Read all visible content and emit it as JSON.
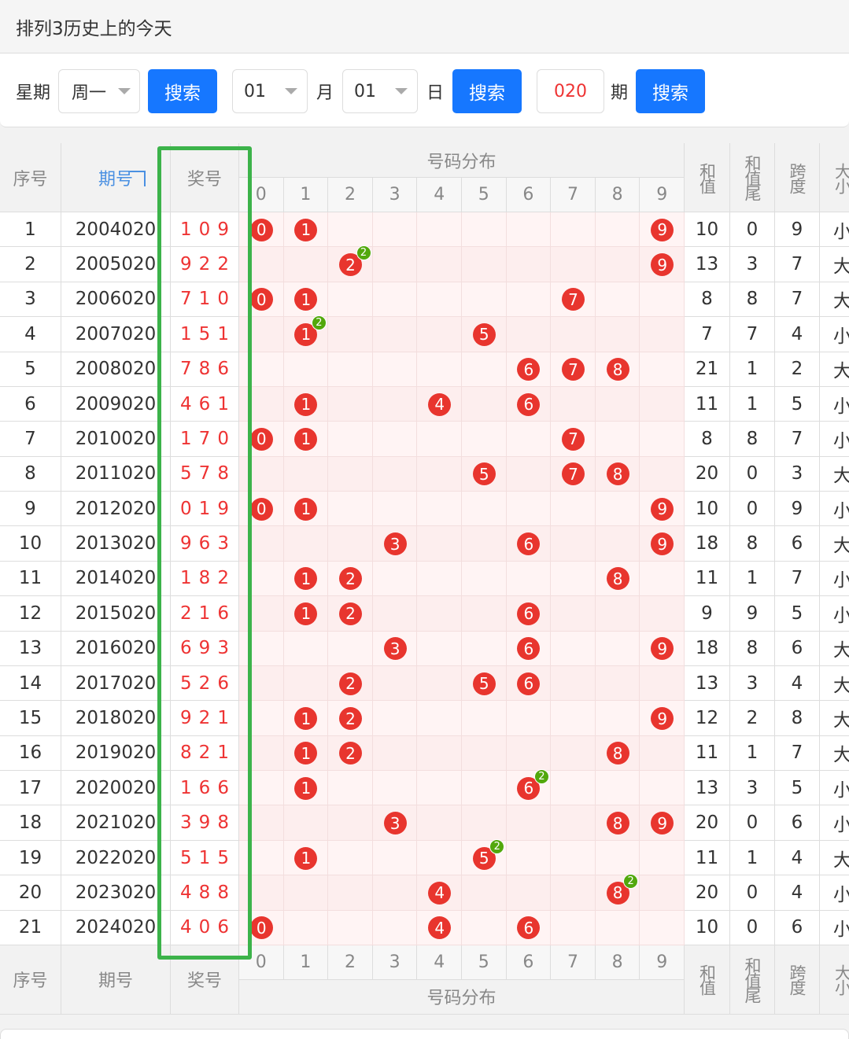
{
  "header": {
    "title": "排列3历史上的今天"
  },
  "controls": {
    "week_label": "星期",
    "week": "周一",
    "search1": "搜索",
    "month": "01",
    "month_label": "月",
    "day": "01",
    "day_label": "日",
    "search2": "搜索",
    "issue": "020",
    "issue_label": "期",
    "search3": "搜索"
  },
  "table": {
    "headers": {
      "no": "序号",
      "issue": "期号",
      "win": "奖号",
      "dist": "号码分布",
      "digits": [
        0,
        1,
        2,
        3,
        4,
        5,
        6,
        7,
        8,
        9
      ],
      "sum": "和值",
      "tail": "和值尾",
      "span": "跨度",
      "size": "大小"
    },
    "rows": [
      {
        "no": 1,
        "issue": "2004020",
        "win": "109",
        "balls": [
          0,
          1,
          9
        ],
        "sum": 10,
        "tail": 0,
        "span": 9,
        "size": "小"
      },
      {
        "no": 2,
        "issue": "2005020",
        "win": "922",
        "balls": [
          2,
          9
        ],
        "rep": {
          "digit": 2,
          "badge": 2
        },
        "sum": 13,
        "tail": 3,
        "span": 7,
        "size": "大"
      },
      {
        "no": 3,
        "issue": "2006020",
        "win": "710",
        "balls": [
          0,
          1,
          7
        ],
        "sum": 8,
        "tail": 8,
        "span": 7,
        "size": "大"
      },
      {
        "no": 4,
        "issue": "2007020",
        "win": "151",
        "balls": [
          1,
          5
        ],
        "rep": {
          "digit": 1,
          "badge": 2
        },
        "sum": 7,
        "tail": 7,
        "span": 4,
        "size": "小"
      },
      {
        "no": 5,
        "issue": "2008020",
        "win": "786",
        "balls": [
          6,
          7,
          8
        ],
        "sum": 21,
        "tail": 1,
        "span": 2,
        "size": "大"
      },
      {
        "no": 6,
        "issue": "2009020",
        "win": "461",
        "balls": [
          1,
          4,
          6
        ],
        "sum": 11,
        "tail": 1,
        "span": 5,
        "size": "小"
      },
      {
        "no": 7,
        "issue": "2010020",
        "win": "170",
        "balls": [
          0,
          1,
          7
        ],
        "sum": 8,
        "tail": 8,
        "span": 7,
        "size": "小"
      },
      {
        "no": 8,
        "issue": "2011020",
        "win": "578",
        "balls": [
          5,
          7,
          8
        ],
        "sum": 20,
        "tail": 0,
        "span": 3,
        "size": "大"
      },
      {
        "no": 9,
        "issue": "2012020",
        "win": "019",
        "balls": [
          0,
          1,
          9
        ],
        "sum": 10,
        "tail": 0,
        "span": 9,
        "size": "小"
      },
      {
        "no": 10,
        "issue": "2013020",
        "win": "963",
        "balls": [
          3,
          6,
          9
        ],
        "sum": 18,
        "tail": 8,
        "span": 6,
        "size": "大"
      },
      {
        "no": 11,
        "issue": "2014020",
        "win": "182",
        "balls": [
          1,
          2,
          8
        ],
        "sum": 11,
        "tail": 1,
        "span": 7,
        "size": "小"
      },
      {
        "no": 12,
        "issue": "2015020",
        "win": "216",
        "balls": [
          1,
          2,
          6
        ],
        "sum": 9,
        "tail": 9,
        "span": 5,
        "size": "小"
      },
      {
        "no": 13,
        "issue": "2016020",
        "win": "693",
        "balls": [
          3,
          6,
          9
        ],
        "sum": 18,
        "tail": 8,
        "span": 6,
        "size": "大"
      },
      {
        "no": 14,
        "issue": "2017020",
        "win": "526",
        "balls": [
          2,
          5,
          6
        ],
        "sum": 13,
        "tail": 3,
        "span": 4,
        "size": "大"
      },
      {
        "no": 15,
        "issue": "2018020",
        "win": "921",
        "balls": [
          1,
          2,
          9
        ],
        "sum": 12,
        "tail": 2,
        "span": 8,
        "size": "大"
      },
      {
        "no": 16,
        "issue": "2019020",
        "win": "821",
        "balls": [
          1,
          2,
          8
        ],
        "sum": 11,
        "tail": 1,
        "span": 7,
        "size": "大"
      },
      {
        "no": 17,
        "issue": "2020020",
        "win": "166",
        "balls": [
          1,
          6
        ],
        "rep": {
          "digit": 6,
          "badge": 2
        },
        "sum": 13,
        "tail": 3,
        "span": 5,
        "size": "小"
      },
      {
        "no": 18,
        "issue": "2021020",
        "win": "398",
        "balls": [
          3,
          8,
          9
        ],
        "sum": 20,
        "tail": 0,
        "span": 6,
        "size": "小"
      },
      {
        "no": 19,
        "issue": "2022020",
        "win": "515",
        "balls": [
          1,
          5
        ],
        "rep": {
          "digit": 5,
          "badge": 2
        },
        "sum": 11,
        "tail": 1,
        "span": 4,
        "size": "大"
      },
      {
        "no": 20,
        "issue": "2023020",
        "win": "488",
        "balls": [
          4,
          8
        ],
        "rep": {
          "digit": 8,
          "badge": 2
        },
        "sum": 20,
        "tail": 0,
        "span": 4,
        "size": "小"
      },
      {
        "no": 21,
        "issue": "2024020",
        "win": "406",
        "balls": [
          0,
          4,
          6
        ],
        "sum": 10,
        "tail": 0,
        "span": 6,
        "size": "小"
      }
    ]
  }
}
